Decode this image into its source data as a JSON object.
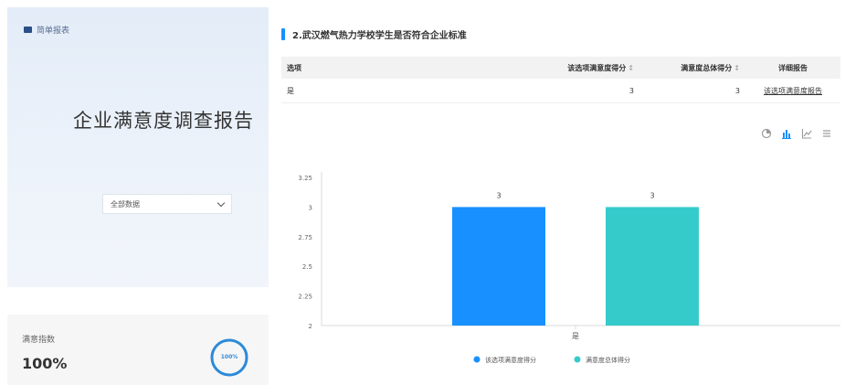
{
  "left": {
    "brand_text": "简单报表",
    "report_title": "企业满意度调查报告",
    "select_value": "全部数据",
    "stat_label": "满意指数",
    "stat_value": "100%",
    "ring_text": "100%",
    "ring_color": "#2c8ad8"
  },
  "question": {
    "title": "2.武汉燃气热力学校学生是否符合企业标准"
  },
  "table": {
    "headers": [
      "选项",
      "该选项满意度得分",
      "满意度总体得分",
      "详细报告"
    ],
    "sort_marks": [
      "",
      "↕",
      "↕",
      ""
    ],
    "rows": [
      {
        "option": "是",
        "option_score": "3",
        "total_score": "3",
        "report_link": "该选项满意度报告"
      }
    ]
  },
  "toolbar": {
    "icons": [
      "pie-chart-icon",
      "bar-chart-icon",
      "line-chart-icon",
      "table-view-icon"
    ]
  },
  "chart_data": {
    "type": "bar",
    "categories": [
      "是"
    ],
    "series": [
      {
        "name": "该选项满意度得分",
        "values": [
          3
        ],
        "color": "#1890ff"
      },
      {
        "name": "满意度总体得分",
        "values": [
          3
        ],
        "color": "#36cbcb"
      }
    ],
    "y_ticks": [
      "3.25",
      "3",
      "2.75",
      "2.5",
      "2.25",
      "2"
    ],
    "ylim": [
      2,
      3.25
    ],
    "data_labels": [
      "3",
      "3"
    ],
    "legend_position": "bottom"
  }
}
